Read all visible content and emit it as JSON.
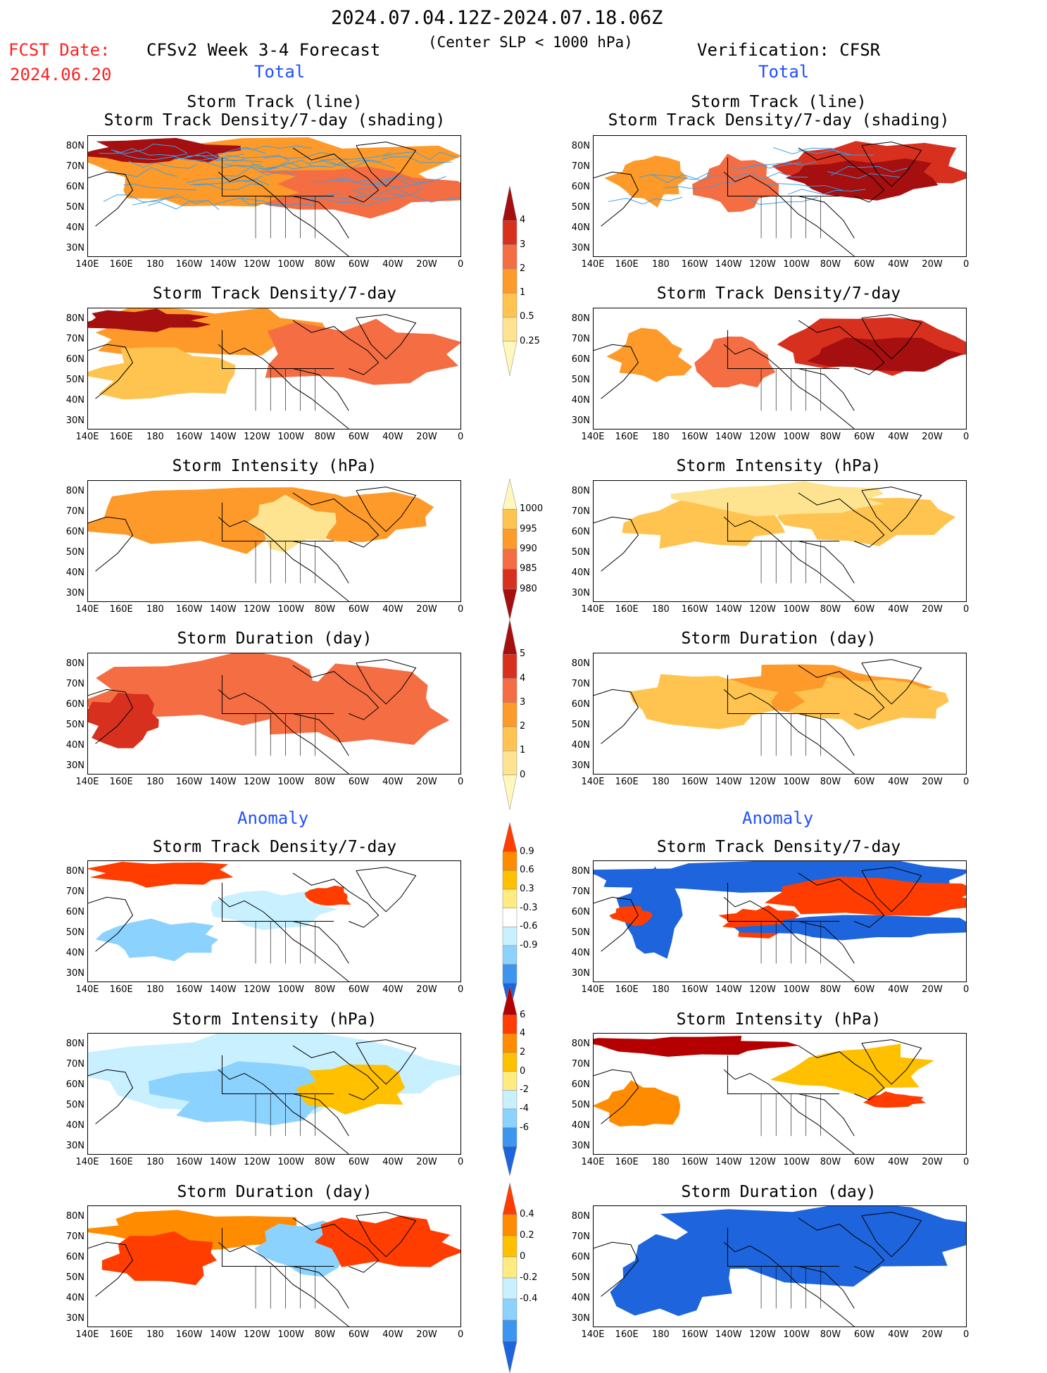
{
  "header": {
    "period": "2024.07.04.12Z-2024.07.18.06Z",
    "fcst_label": "FCST Date:",
    "fcst_date": "2024.06.20",
    "left_title": "CFSv2 Week 3-4 Forecast",
    "criteria": "(Center SLP < 1000 hPa)",
    "right_title": "Verification: CFSR",
    "total_left": "Total",
    "total_right": "Total",
    "anomaly_left": "Anomaly",
    "anomaly_right": "Anomaly"
  },
  "panel_titles": {
    "track_line": "Storm Track (line)",
    "track_shading": "Storm Track Density/7-day (shading)",
    "density": "Storm Track Density/7-day",
    "intensity": "Storm Intensity (hPa)",
    "duration": "Storm Duration (day)"
  },
  "axes": {
    "lat_ticks": [
      "80N",
      "70N",
      "60N",
      "50N",
      "40N",
      "30N"
    ],
    "lon_ticks": [
      "140E",
      "160E",
      "180",
      "160W",
      "140W",
      "120W",
      "100W",
      "80W",
      "60W",
      "40W",
      "20W",
      "0"
    ]
  },
  "colorbars": {
    "density_total": {
      "labels": [
        "4",
        "3",
        "2",
        "1",
        "0.5",
        "0.25"
      ],
      "colors": [
        "#a50f0f",
        "#d7301f",
        "#f46d43",
        "#fd9a2a",
        "#fec44f",
        "#fee391",
        "#fff7bc"
      ]
    },
    "intensity_total": {
      "labels": [
        "1000",
        "995",
        "990",
        "985",
        "980"
      ],
      "colors": [
        "#fff7bc",
        "#fec44f",
        "#fd9a2a",
        "#f46d43",
        "#d7301f",
        "#a50f0f"
      ]
    },
    "duration_total": {
      "labels": [
        "5",
        "4",
        "3",
        "2",
        "1",
        "0"
      ],
      "colors": [
        "#a50f0f",
        "#d7301f",
        "#f46d43",
        "#fd9a2a",
        "#fec44f",
        "#fee391",
        "#fff7bc"
      ]
    },
    "density_anom": {
      "labels": [
        "0.9",
        "0.6",
        "0.3",
        "-0.3",
        "-0.6",
        "-0.9"
      ],
      "colors": [
        "#ff3d00",
        "#ff8c00",
        "#ffc000",
        "#ffeb80",
        "#ffffff",
        "#c8f0ff",
        "#8cd2ff",
        "#3c96f0",
        "#1e64dc"
      ]
    },
    "intensity_anom": {
      "labels": [
        "6",
        "4",
        "2",
        "0",
        "-2",
        "-4",
        "-6"
      ],
      "colors": [
        "#b40000",
        "#ff3d00",
        "#ff8c00",
        "#ffc000",
        "#ffeb80",
        "#c8f0ff",
        "#8cd2ff",
        "#3c96f0",
        "#1e64dc"
      ]
    },
    "duration_anom": {
      "labels": [
        "0.4",
        "0.2",
        "0",
        "-0.2",
        "-0.4"
      ],
      "colors": [
        "#ff3d00",
        "#ff8c00",
        "#ffc000",
        "#ffeb80",
        "#c8f0ff",
        "#8cd2ff",
        "#3c96f0",
        "#1e64dc"
      ]
    }
  },
  "chart_data": [
    {
      "type": "heatmap",
      "panel": "forecast-track-density-shading",
      "title": "Storm Track (line) / Storm Track Density/7-day (shading)",
      "xlim": [
        "140E",
        "0"
      ],
      "ylim": [
        "25N",
        "85N"
      ]
    },
    {
      "type": "heatmap",
      "panel": "verification-track-density-shading",
      "title": "Storm Track (line) / Storm Track Density/7-day (shading)",
      "xlim": [
        "140E",
        "0"
      ],
      "ylim": [
        "25N",
        "85N"
      ]
    },
    {
      "type": "heatmap",
      "panel": "forecast-density",
      "title": "Storm Track Density/7-day",
      "scale": [
        0.25,
        0.5,
        1,
        2,
        3,
        4
      ]
    },
    {
      "type": "heatmap",
      "panel": "verification-density",
      "title": "Storm Track Density/7-day",
      "scale": [
        0.25,
        0.5,
        1,
        2,
        3,
        4
      ]
    },
    {
      "type": "heatmap",
      "panel": "forecast-intensity",
      "title": "Storm Intensity (hPa)",
      "scale": [
        980,
        985,
        990,
        995,
        1000
      ]
    },
    {
      "type": "heatmap",
      "panel": "verification-intensity",
      "title": "Storm Intensity (hPa)",
      "scale": [
        980,
        985,
        990,
        995,
        1000
      ]
    },
    {
      "type": "heatmap",
      "panel": "forecast-duration",
      "title": "Storm Duration (day)",
      "scale": [
        0,
        1,
        2,
        3,
        4,
        5
      ]
    },
    {
      "type": "heatmap",
      "panel": "verification-duration",
      "title": "Storm Duration (day)",
      "scale": [
        0,
        1,
        2,
        3,
        4,
        5
      ]
    },
    {
      "type": "heatmap",
      "panel": "forecast-density-anomaly",
      "title": "Storm Track Density/7-day",
      "scale": [
        -0.9,
        -0.6,
        -0.3,
        0.3,
        0.6,
        0.9
      ]
    },
    {
      "type": "heatmap",
      "panel": "verification-density-anomaly",
      "title": "Storm Track Density/7-day",
      "scale": [
        -0.9,
        -0.6,
        -0.3,
        0.3,
        0.6,
        0.9
      ]
    },
    {
      "type": "heatmap",
      "panel": "forecast-intensity-anomaly",
      "title": "Storm Intensity (hPa)",
      "scale": [
        -6,
        -4,
        -2,
        0,
        2,
        4,
        6
      ]
    },
    {
      "type": "heatmap",
      "panel": "verification-intensity-anomaly",
      "title": "Storm Intensity (hPa)",
      "scale": [
        -6,
        -4,
        -2,
        0,
        2,
        4,
        6
      ]
    },
    {
      "type": "heatmap",
      "panel": "forecast-duration-anomaly",
      "title": "Storm Duration (day)",
      "scale": [
        -0.4,
        -0.2,
        0,
        0.2,
        0.4
      ]
    },
    {
      "type": "heatmap",
      "panel": "verification-duration-anomaly",
      "title": "Storm Duration (day)",
      "scale": [
        -0.4,
        -0.2,
        0,
        0.2,
        0.4
      ]
    }
  ]
}
